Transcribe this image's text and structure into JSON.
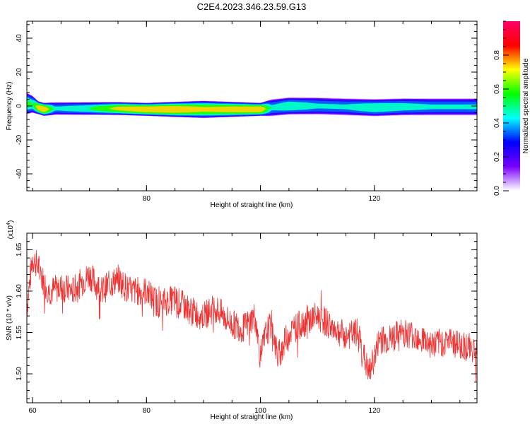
{
  "title": "C2E4.2023.346.23.59.G13",
  "chart_data": [
    {
      "type": "heatmap",
      "xlabel": "Height of straight line (km)",
      "ylabel": "Frequency (Hz)",
      "xlim": [
        59,
        138
      ],
      "ylim": [
        -50,
        50
      ],
      "xticks": [
        80,
        100,
        120
      ],
      "xtick_labels": [
        "80",
        "",
        "120"
      ],
      "yticks": [
        -40,
        -20,
        0,
        20,
        40
      ],
      "ytick_labels": [
        "-40",
        "-20",
        "0",
        "20",
        "40"
      ],
      "grid": false,
      "colorbar": {
        "label": "Normalized spectral amplitude",
        "range": [
          0,
          1
        ],
        "ticks": [
          0.0,
          0.2,
          0.4,
          0.6,
          0.8
        ],
        "tick_labels": [
          "0.0",
          "0.2",
          "0.4",
          "0.6",
          "0.8"
        ],
        "colors": [
          "#ffffff",
          "#7a00ff",
          "#0000ff",
          "#00ffff",
          "#00ff00",
          "#ffff00",
          "#ff0000",
          "#ff0066"
        ]
      },
      "band": {
        "x": [
          59,
          60,
          61,
          62,
          64,
          70,
          75,
          80,
          85,
          90,
          95,
          100,
          102,
          105,
          110,
          115,
          120,
          125,
          130,
          135,
          138
        ],
        "center": [
          1.5,
          1,
          -1,
          -2,
          -1.5,
          -1.5,
          -1.5,
          -2,
          -2,
          -2,
          -2,
          -2,
          -1,
          0,
          0,
          -0.5,
          -1,
          -0.5,
          -0.5,
          -0.5,
          -0.5
        ],
        "halfwidth": [
          5,
          4,
          3,
          3,
          3,
          3,
          3,
          3,
          3.5,
          4,
          3.5,
          3,
          4,
          4,
          4,
          4,
          4,
          4,
          4,
          4,
          4
        ],
        "peak": [
          0.6,
          0.55,
          0.8,
          0.85,
          0.45,
          0.55,
          0.75,
          0.85,
          0.85,
          0.75,
          0.8,
          0.85,
          0.45,
          0.55,
          0.45,
          0.45,
          0.55,
          0.5,
          0.45,
          0.45,
          0.45
        ]
      }
    },
    {
      "type": "line",
      "xlabel": "Height of straight line (km)",
      "ylabel": "SNR (10 * v/v)",
      "yscale_label": "(x10",
      "yscale_exp": "4",
      "yscale_close": ")",
      "xlim": [
        59,
        138
      ],
      "ylim": [
        1.465,
        1.67
      ],
      "xticks": [
        60,
        80,
        100,
        120
      ],
      "xtick_labels": [
        "60",
        "80",
        "100",
        "120"
      ],
      "yticks": [
        1.5,
        1.55,
        1.6,
        1.65
      ],
      "ytick_labels": [
        "1.50",
        "1.55",
        "1.60",
        "1.65"
      ],
      "grid": false,
      "series": [
        {
          "color": "#ee3333",
          "x": [
            59,
            60,
            61,
            62,
            63,
            65,
            67,
            70,
            72,
            75,
            77,
            80,
            82,
            85,
            88,
            90,
            92,
            95,
            97,
            99,
            100,
            101,
            102,
            103,
            105,
            107,
            110,
            112,
            115,
            117,
            119,
            120,
            121,
            122,
            125,
            128,
            130,
            133,
            135,
            138
          ],
          "values": [
            1.58,
            1.64,
            1.63,
            1.61,
            1.6,
            1.605,
            1.6,
            1.62,
            1.6,
            1.615,
            1.6,
            1.6,
            1.585,
            1.59,
            1.575,
            1.57,
            1.58,
            1.56,
            1.555,
            1.57,
            1.52,
            1.55,
            1.56,
            1.52,
            1.55,
            1.56,
            1.57,
            1.56,
            1.545,
            1.55,
            1.5,
            1.52,
            1.545,
            1.54,
            1.55,
            1.545,
            1.535,
            1.54,
            1.535,
            1.53
          ],
          "noise": 0.018
        }
      ]
    }
  ]
}
